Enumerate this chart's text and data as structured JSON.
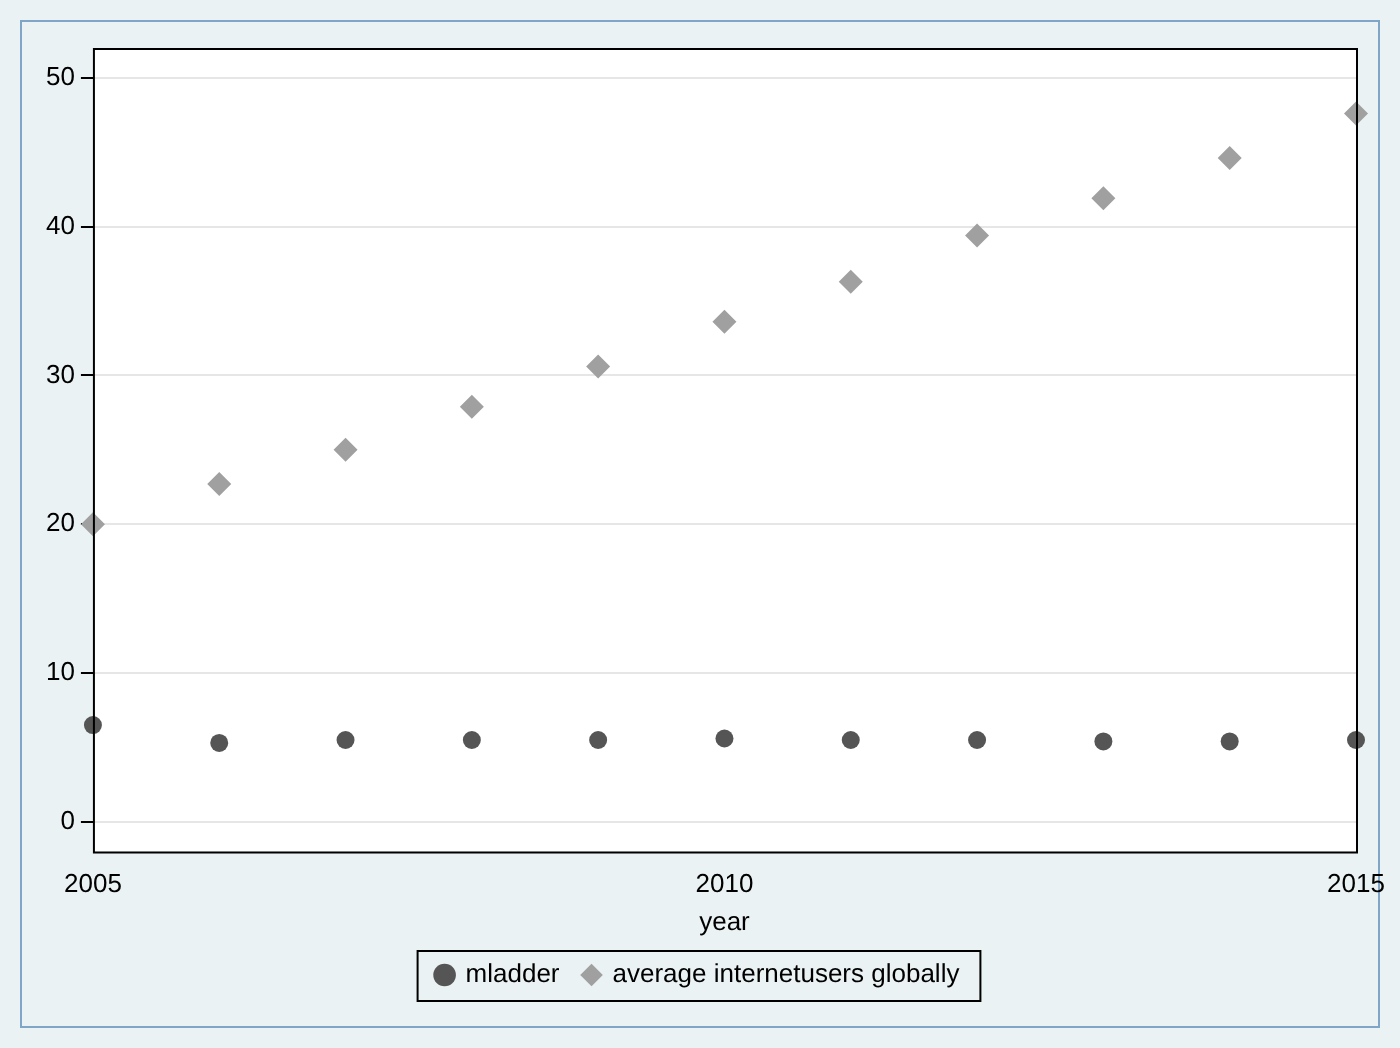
{
  "chart_data": {
    "type": "scatter",
    "xlabel": "year",
    "x": [
      2005,
      2006,
      2007,
      2008,
      2009,
      2010,
      2011,
      2012,
      2013,
      2014,
      2015
    ],
    "series": [
      {
        "name": "mladder",
        "color": "#555555",
        "marker": "circle",
        "values": [
          6.5,
          5.3,
          5.5,
          5.5,
          5.5,
          5.6,
          5.5,
          5.5,
          5.4,
          5.4,
          5.5
        ]
      },
      {
        "name": "average internetusers globally",
        "color": "#a0a0a0",
        "marker": "diamond",
        "values": [
          20,
          22.7,
          25,
          27.9,
          30.6,
          33.6,
          36.3,
          39.4,
          41.9,
          44.6,
          47.6
        ]
      }
    ],
    "xlim": [
      2005,
      2015
    ],
    "xticks": [
      2005,
      2010,
      2015
    ],
    "ylim": [
      -2,
      52
    ],
    "yticks": [
      0,
      10,
      20,
      30,
      40,
      50
    ],
    "grid": "y",
    "legend": "bottom"
  }
}
